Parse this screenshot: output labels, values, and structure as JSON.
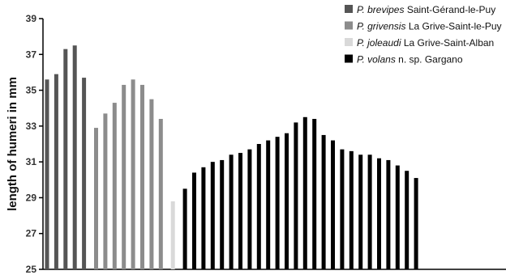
{
  "chart_data": {
    "type": "bar",
    "ylabel": "length of humeri in mm",
    "ylim": [
      25,
      39
    ],
    "yticks": [
      25,
      27,
      29,
      31,
      33,
      35,
      37,
      39
    ],
    "grid": false,
    "legend_position": "top-right",
    "series": [
      {
        "name": "P. brevipes Saint-Gérand-le-Puy",
        "name_italic": "P. brevipes",
        "name_rest": " Saint-Gérand-le-Puy",
        "color": "#555555",
        "values": [
          35.6,
          35.9,
          37.3,
          37.5,
          35.7
        ]
      },
      {
        "name": "P. grivensis La Grive-Saint-le-Puy",
        "name_italic": "P. grivensis",
        "name_rest": " La Grive-Saint-le-Puy",
        "color": "#8c8c8c",
        "values": [
          32.9,
          33.7,
          34.3,
          35.3,
          35.6,
          35.3,
          34.5,
          33.4
        ]
      },
      {
        "name": "P. joleaudi La Grive-Saint-Alban",
        "name_italic": "P. joleaudi",
        "name_rest": " La Grive-Saint-Alban",
        "color": "#d9d9d9",
        "values": [
          28.8
        ]
      },
      {
        "name": "P. volans n. sp. Gargano",
        "name_italic": "P. volans",
        "name_rest": " n. sp. Gargano",
        "color": "#000000",
        "values": [
          29.5,
          30.4,
          30.7,
          31.0,
          31.1,
          31.4,
          31.5,
          31.7,
          32.0,
          32.2,
          32.4,
          32.6,
          33.2,
          33.5,
          33.4,
          32.5,
          32.2,
          31.7,
          31.6,
          31.4,
          31.4,
          31.2,
          31.1,
          30.8,
          30.5,
          30.1
        ]
      }
    ]
  }
}
